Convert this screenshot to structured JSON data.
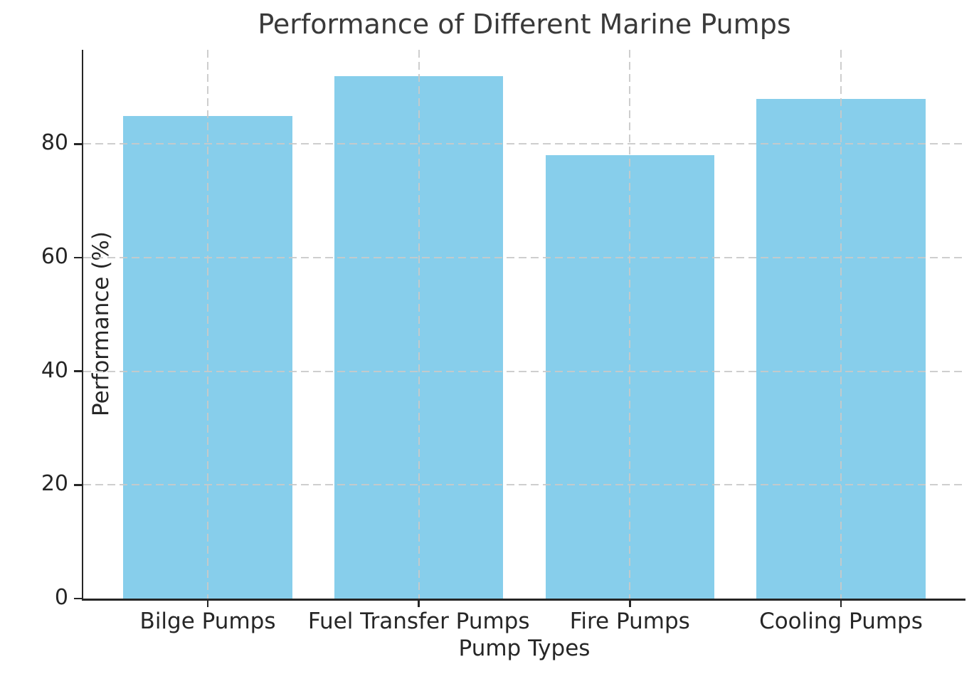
{
  "chart_data": {
    "type": "bar",
    "title": "Performance of Different Marine Pumps",
    "xlabel": "Pump Types",
    "ylabel": "Performance (%)",
    "categories": [
      "Bilge Pumps",
      "Fuel Transfer Pumps",
      "Fire Pumps",
      "Cooling Pumps"
    ],
    "values": [
      85,
      92,
      78,
      88
    ],
    "yticks": [
      0,
      20,
      40,
      60,
      80
    ],
    "ylim": [
      0,
      96.6
    ],
    "grid": true,
    "grid_style": "dashed",
    "legend": "none",
    "colors": {
      "bar": "#87CEEB",
      "grid": "#c9c9c9",
      "axis": "#262626",
      "text": "#262626",
      "title": "#3a3a3a",
      "background": "#ffffff"
    }
  }
}
